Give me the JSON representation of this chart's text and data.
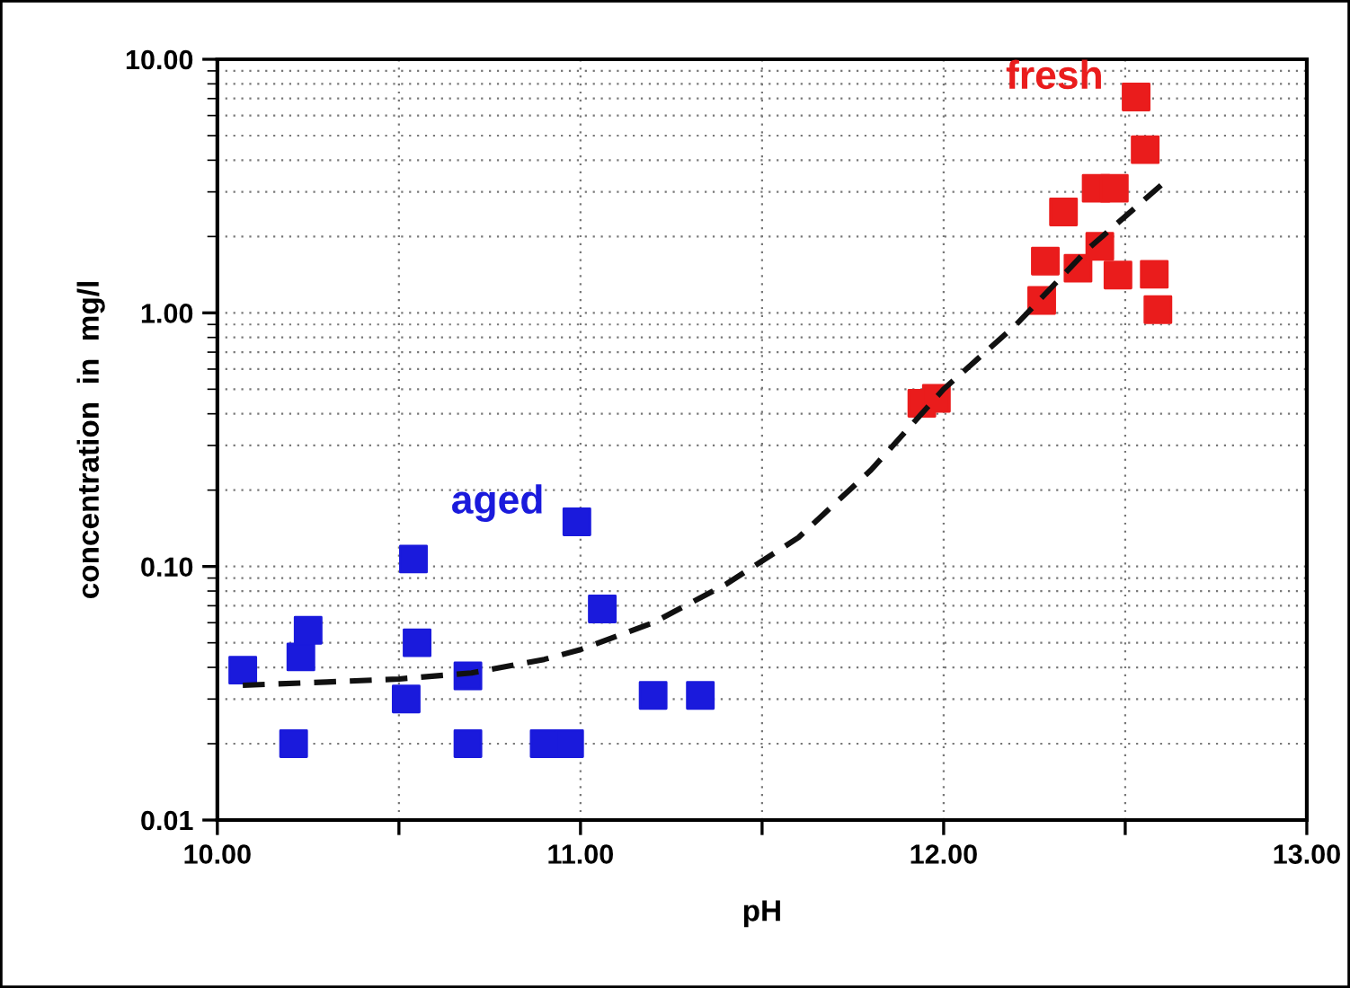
{
  "chart_data": {
    "type": "scatter",
    "xlabel": "pH",
    "ylabel": "concentration  in  mg/l",
    "log": "y",
    "grid": true,
    "marker": "square",
    "legend": false,
    "xlim": [
      10,
      13
    ],
    "ylim": [
      0.01,
      10
    ],
    "xticks": [
      {
        "value": 10,
        "label": "10.00"
      },
      {
        "value": 10.5,
        "label": null
      },
      {
        "value": 11,
        "label": "11.00"
      },
      {
        "value": 11.5,
        "label": null
      },
      {
        "value": 12,
        "label": "12.00"
      },
      {
        "value": 12.5,
        "label": null
      },
      {
        "value": 13,
        "label": "13.00"
      }
    ],
    "yticks": [
      {
        "value": 0.01,
        "label": "0.01"
      },
      {
        "value": 0.1,
        "label": "0.10"
      },
      {
        "value": 1,
        "label": "1.00"
      },
      {
        "value": 10,
        "label": "10.00"
      }
    ],
    "series": [
      {
        "name": "aged",
        "color": "#1a1adc",
        "x": [
          10.07,
          10.21,
          10.23,
          10.25,
          10.54,
          10.55,
          10.52,
          10.69,
          10.69,
          10.9,
          10.97,
          10.99,
          11.06,
          11.2,
          11.33
        ],
        "values": [
          0.039,
          0.02,
          0.044,
          0.056,
          0.107,
          0.05,
          0.03,
          0.037,
          0.02,
          0.02,
          0.02,
          0.15,
          0.068,
          0.031,
          0.031
        ]
      },
      {
        "name": "fresh",
        "color": "#ea1c1c",
        "x": [
          12.53,
          12.555,
          12.42,
          12.47,
          12.33,
          12.28,
          12.37,
          12.43,
          12.48,
          12.58,
          12.59,
          12.27,
          11.94,
          11.98
        ],
        "values": [
          7.1,
          4.4,
          3.1,
          3.1,
          2.5,
          1.6,
          1.5,
          1.83,
          1.41,
          1.42,
          1.03,
          1.12,
          0.44,
          0.46
        ]
      },
      {
        "type": "line",
        "line_style": "dashed",
        "color": "#111111",
        "marker": "none",
        "x": [
          10.07,
          10.3,
          10.5,
          10.7,
          10.9,
          11.0,
          11.2,
          11.4,
          11.6,
          11.8,
          12.0,
          12.2,
          12.4,
          12.6
        ],
        "values": [
          0.034,
          0.035,
          0.036,
          0.038,
          0.043,
          0.047,
          0.06,
          0.085,
          0.13,
          0.24,
          0.5,
          0.9,
          1.8,
          3.2
        ]
      }
    ]
  }
}
